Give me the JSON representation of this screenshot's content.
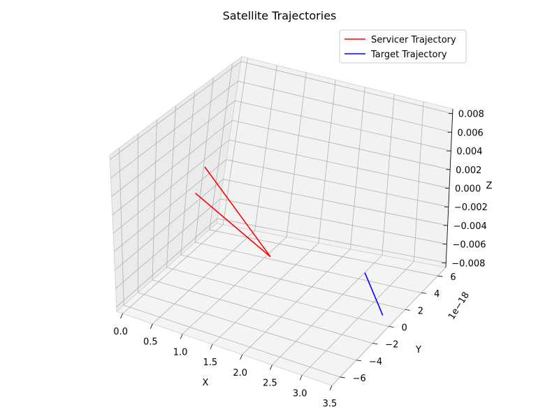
{
  "chart_data": {
    "type": "line",
    "title": "Satellite Trajectories",
    "xlabel": "X",
    "ylabel": "Y",
    "zlabel": "Z",
    "y_offset_text": "1e−18",
    "xlim": [
      -0.1,
      3.5
    ],
    "ylim": [
      -7,
      7
    ],
    "zlim": [
      -0.0085,
      0.0085
    ],
    "x_ticks": [
      0.0,
      0.5,
      1.0,
      1.5,
      2.0,
      2.5,
      3.0,
      3.5
    ],
    "x_tick_labels": [
      "0.0",
      "0.5",
      "1.0",
      "1.5",
      "2.0",
      "2.5",
      "3.0",
      "3.5"
    ],
    "y_ticks": [
      -6,
      -4,
      -2,
      0,
      2,
      4,
      6
    ],
    "y_tick_labels": [
      "−6",
      "−4",
      "−2",
      "0",
      "2",
      "4",
      "6"
    ],
    "z_ticks": [
      -0.008,
      -0.006,
      -0.004,
      -0.002,
      0.0,
      0.002,
      0.004,
      0.006,
      0.008
    ],
    "z_tick_labels": [
      "−0.008",
      "−0.006",
      "−0.004",
      "−0.002",
      "0.000",
      "0.002",
      "0.004",
      "0.006",
      "0.008"
    ],
    "grid": true,
    "legend_position": "top-right",
    "series": [
      {
        "name": "Servicer Trajectory",
        "color": "#ff0000",
        "points": [
          {
            "x": 0.3,
            "y": 0,
            "z": 0.0
          },
          {
            "x": 1.56,
            "y": 0,
            "z": -0.0045
          },
          {
            "x": 0.43,
            "y": 0,
            "z": 0.003
          }
        ]
      },
      {
        "name": "Target Trajectory",
        "color": "#0000ff",
        "points": [
          {
            "x": 3.1,
            "y": 0,
            "z": -0.0035
          },
          {
            "x": 3.4,
            "y": 0,
            "z": -0.0075
          }
        ]
      }
    ]
  }
}
